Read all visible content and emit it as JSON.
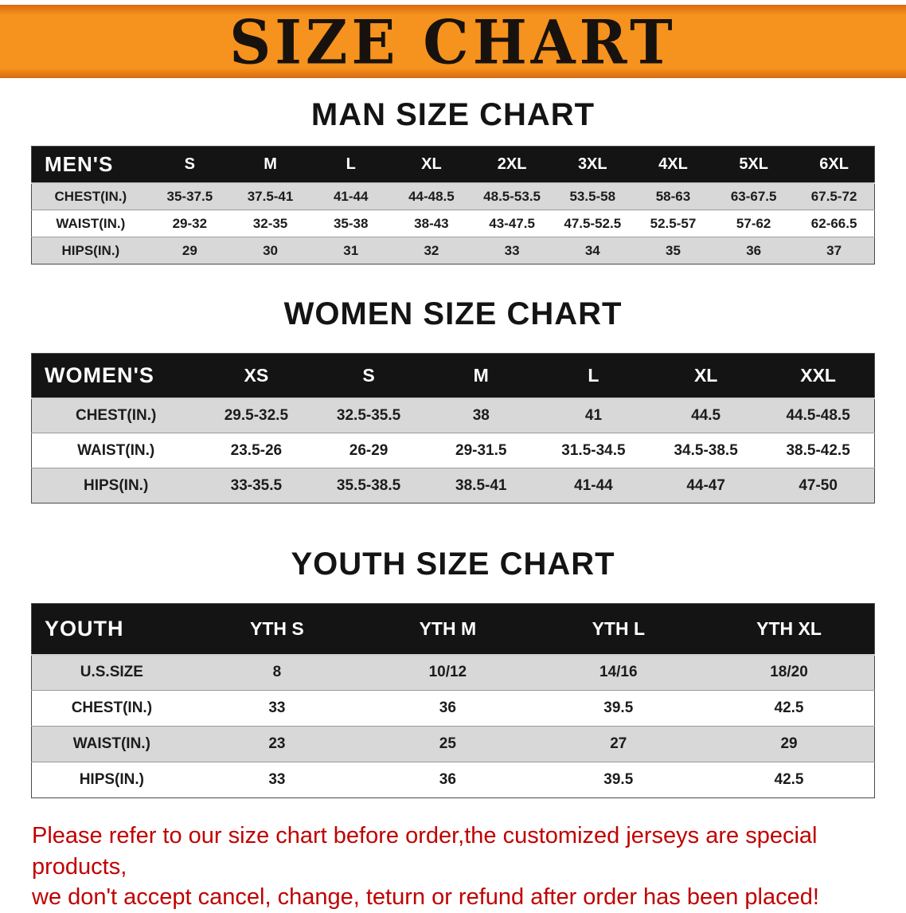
{
  "banner": {
    "title": "SIZE CHART"
  },
  "colors": {
    "banner_bg": "#F6921E",
    "table_header_bg": "#141414",
    "row_stripe": "#D8D8D8",
    "footer_text": "#C00000"
  },
  "chart_data": [
    {
      "type": "table",
      "title": "MAN SIZE CHART",
      "columns": [
        "MEN'S",
        "S",
        "M",
        "L",
        "XL",
        "2XL",
        "3XL",
        "4XL",
        "5XL",
        "6XL"
      ],
      "rows": [
        [
          "CHEST(IN.)",
          "35-37.5",
          "37.5-41",
          "41-44",
          "44-48.5",
          "48.5-53.5",
          "53.5-58",
          "58-63",
          "63-67.5",
          "67.5-72"
        ],
        [
          "WAIST(IN.)",
          "29-32",
          "32-35",
          "35-38",
          "38-43",
          "43-47.5",
          "47.5-52.5",
          "52.5-57",
          "57-62",
          "62-66.5"
        ],
        [
          "HIPS(IN.)",
          "29",
          "30",
          "31",
          "32",
          "33",
          "34",
          "35",
          "36",
          "37"
        ]
      ]
    },
    {
      "type": "table",
      "title": "WOMEN SIZE CHART",
      "columns": [
        "WOMEN'S",
        "XS",
        "S",
        "M",
        "L",
        "XL",
        "XXL"
      ],
      "rows": [
        [
          "CHEST(IN.)",
          "29.5-32.5",
          "32.5-35.5",
          "38",
          "41",
          "44.5",
          "44.5-48.5"
        ],
        [
          "WAIST(IN.)",
          "23.5-26",
          "26-29",
          "29-31.5",
          "31.5-34.5",
          "34.5-38.5",
          "38.5-42.5"
        ],
        [
          "HIPS(IN.)",
          "33-35.5",
          "35.5-38.5",
          "38.5-41",
          "41-44",
          "44-47",
          "47-50"
        ]
      ]
    },
    {
      "type": "table",
      "title": "YOUTH SIZE CHART",
      "columns": [
        "YOUTH",
        "YTH S",
        "YTH M",
        "YTH L",
        "YTH XL"
      ],
      "rows": [
        [
          "U.S.SIZE",
          "8",
          "10/12",
          "14/16",
          "18/20"
        ],
        [
          "CHEST(IN.)",
          "33",
          "36",
          "39.5",
          "42.5"
        ],
        [
          "WAIST(IN.)",
          "23",
          "25",
          "27",
          "29"
        ],
        [
          "HIPS(IN.)",
          "33",
          "36",
          "39.5",
          "42.5"
        ]
      ]
    }
  ],
  "footer": {
    "lines": [
      "Please refer to our size chart before order,the customized jerseys are special products,",
      "we don't accept cancel, change, teturn or refund after order has been placed!"
    ]
  }
}
